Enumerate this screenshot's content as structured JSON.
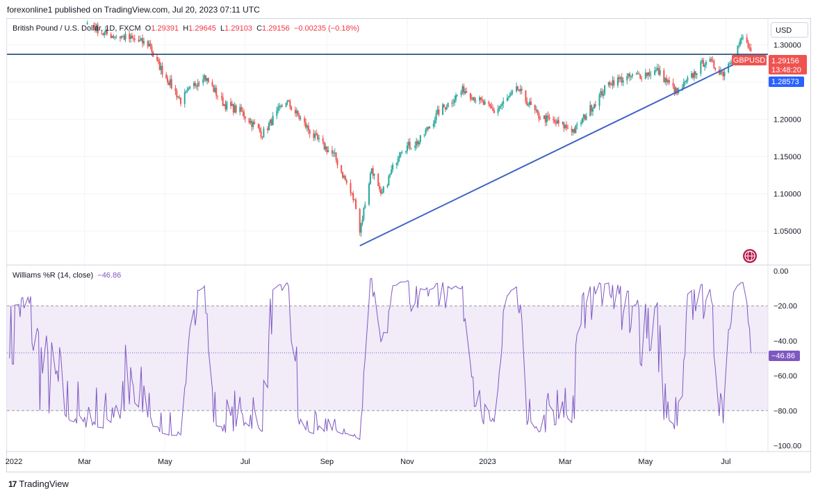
{
  "header": {
    "publish_line": "forexonline1 published on TradingView.com, Jul 20, 2023 07:11 UTC"
  },
  "legend": {
    "symbol": "British Pound / U.S. Dollar, 1D, FXCM",
    "o_label": "O",
    "o_value": "1.29391",
    "h_label": "H",
    "h_value": "1.29645",
    "l_label": "L",
    "l_value": "1.29103",
    "c_label": "C",
    "c_value": "1.29156",
    "change": "−0.00235 (−0.18%)"
  },
  "currency_button": "USD",
  "indicator": {
    "name": "Williams %R (14, close)",
    "value": "−46.86"
  },
  "footer": {
    "logo_text": "17",
    "brand": "TradingView"
  },
  "colors": {
    "up": "#26a69a",
    "down": "#ef5350",
    "trendline": "#2962ff",
    "williams": "#7e57c2",
    "band": "#ede7f6"
  },
  "icons": {
    "brand_icon": "tradingview-logo-icon",
    "watermark": "globe-icon"
  },
  "chart_data": [
    {
      "type": "candlestick",
      "symbol_tag": "GBPUSD",
      "last_price": "1.29156",
      "countdown": "13:48:20",
      "line_level_label": "1.28573",
      "horizontal_line": 1.2873,
      "trendline": {
        "from": [
          "2022-09-26",
          1.03
        ],
        "to": [
          "2023-07-12",
          1.278
        ]
      },
      "ylim": [
        1.005,
        1.335
      ],
      "y_ticks": [
        "1.30000",
        "1.25000",
        "1.20000",
        "1.15000",
        "1.10000",
        "1.05000"
      ],
      "y_tick_values": [
        1.3,
        1.25,
        1.2,
        1.15,
        1.1,
        1.05
      ],
      "x_labels": [
        "2022",
        "Mar",
        "May",
        "Jul",
        "Sep",
        "Nov",
        "2023",
        "Mar",
        "May",
        "Jul"
      ],
      "x_label_months": [
        0,
        2,
        4,
        6,
        8,
        10,
        12,
        14,
        16,
        18
      ],
      "anchors": [
        [
          "2022-01-01",
          1.352
        ],
        [
          "2022-01-15",
          1.365
        ],
        [
          "2022-02-10",
          1.355
        ],
        [
          "2022-03-01",
          1.335
        ],
        [
          "2022-03-15",
          1.315
        ],
        [
          "2022-04-01",
          1.31
        ],
        [
          "2022-04-20",
          1.3
        ],
        [
          "2022-04-22",
          1.285
        ],
        [
          "2022-05-13",
          1.225
        ],
        [
          "2022-05-30",
          1.26
        ],
        [
          "2022-06-15",
          1.22
        ],
        [
          "2022-06-28",
          1.21
        ],
        [
          "2022-07-14",
          1.18
        ],
        [
          "2022-08-01",
          1.225
        ],
        [
          "2022-08-23",
          1.175
        ],
        [
          "2022-09-07",
          1.15
        ],
        [
          "2022-09-23",
          1.085
        ],
        [
          "2022-09-26",
          1.05
        ],
        [
          "2022-10-05",
          1.135
        ],
        [
          "2022-10-12",
          1.095
        ],
        [
          "2022-10-27",
          1.16
        ],
        [
          "2022-11-10",
          1.17
        ],
        [
          "2022-11-25",
          1.21
        ],
        [
          "2022-12-14",
          1.24
        ],
        [
          "2023-01-06",
          1.21
        ],
        [
          "2023-01-24",
          1.24
        ],
        [
          "2023-02-08",
          1.205
        ],
        [
          "2023-03-08",
          1.185
        ],
        [
          "2023-04-04",
          1.25
        ],
        [
          "2023-05-10",
          1.265
        ],
        [
          "2023-05-25",
          1.235
        ],
        [
          "2023-06-16",
          1.28
        ],
        [
          "2023-06-29",
          1.262
        ],
        [
          "2023-07-14",
          1.31
        ],
        [
          "2023-07-20",
          1.2916
        ]
      ]
    },
    {
      "type": "line",
      "name": "Williams %R (14, close)",
      "ylim": [
        -103,
        3
      ],
      "y_ticks": [
        "0.00",
        "−20.00",
        "−40.00",
        "−60.00",
        "−80.00",
        "−100.00"
      ],
      "y_tick_values": [
        0,
        -20,
        -40,
        -60,
        -80,
        -100
      ],
      "band": [
        -80,
        -20
      ],
      "current": -46.86,
      "current_label": "−46.86"
    }
  ]
}
